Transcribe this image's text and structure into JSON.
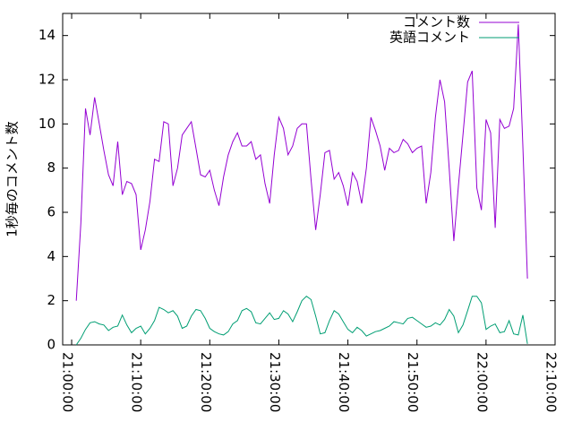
{
  "chart_data": {
    "type": "line",
    "ylabel": "1秒毎のコメント数",
    "x": [
      "21:00:40",
      "21:01:20",
      "21:02:00",
      "21:02:40",
      "21:03:20",
      "21:04:00",
      "21:04:40",
      "21:05:20",
      "21:06:00",
      "21:06:40",
      "21:07:20",
      "21:08:00",
      "21:08:40",
      "21:09:20",
      "21:10:00",
      "21:10:40",
      "21:11:20",
      "21:12:00",
      "21:12:40",
      "21:13:20",
      "21:14:00",
      "21:14:40",
      "21:15:20",
      "21:16:00",
      "21:16:40",
      "21:17:20",
      "21:18:00",
      "21:18:40",
      "21:19:20",
      "21:20:00",
      "21:20:40",
      "21:21:20",
      "21:22:00",
      "21:22:40",
      "21:23:20",
      "21:24:00",
      "21:24:40",
      "21:25:20",
      "21:26:00",
      "21:26:40",
      "21:27:20",
      "21:28:00",
      "21:28:40",
      "21:29:20",
      "21:30:00",
      "21:30:40",
      "21:31:20",
      "21:32:00",
      "21:32:40",
      "21:33:20",
      "21:34:00",
      "21:34:40",
      "21:35:20",
      "21:36:00",
      "21:36:40",
      "21:37:20",
      "21:38:00",
      "21:38:40",
      "21:39:20",
      "21:40:00",
      "21:40:40",
      "21:41:20",
      "21:42:00",
      "21:42:40",
      "21:43:20",
      "21:44:00",
      "21:44:40",
      "21:45:20",
      "21:46:00",
      "21:46:40",
      "21:47:20",
      "21:48:00",
      "21:48:40",
      "21:49:20",
      "21:50:00",
      "21:50:40",
      "21:51:20",
      "21:52:00",
      "21:52:40",
      "21:53:20",
      "21:54:00",
      "21:54:40",
      "21:55:20",
      "21:56:00",
      "21:56:40",
      "21:57:20",
      "21:58:00",
      "21:58:40",
      "21:59:20",
      "22:00:00",
      "22:00:40",
      "22:01:20",
      "22:02:00",
      "22:02:40",
      "22:03:20",
      "22:04:00",
      "22:04:40",
      "22:05:20",
      "22:06:00"
    ],
    "series": [
      {
        "name": "コメント数",
        "color": "#9400d3",
        "values": [
          2.0,
          5.5,
          10.7,
          9.5,
          11.2,
          10.0,
          8.8,
          7.7,
          7.2,
          9.2,
          6.8,
          7.4,
          7.3,
          6.8,
          4.3,
          5.2,
          6.5,
          8.4,
          8.3,
          10.1,
          10.0,
          7.2,
          8.0,
          9.5,
          9.8,
          10.1,
          8.9,
          7.7,
          7.6,
          7.9,
          7.0,
          6.3,
          7.6,
          8.6,
          9.2,
          9.6,
          9.0,
          9.0,
          9.2,
          8.4,
          8.6,
          7.3,
          6.4,
          8.6,
          10.3,
          9.8,
          8.6,
          9.0,
          9.8,
          10.0,
          10.0,
          7.5,
          5.2,
          6.8,
          8.7,
          8.8,
          7.5,
          7.8,
          7.2,
          6.3,
          7.8,
          7.4,
          6.4,
          8.0,
          10.3,
          9.7,
          9.0,
          7.9,
          8.9,
          8.7,
          8.8,
          9.3,
          9.1,
          8.7,
          8.9,
          9.0,
          6.4,
          7.8,
          10.3,
          12.0,
          11.0,
          8.0,
          4.7,
          7.2,
          9.5,
          11.9,
          12.4,
          7.1,
          6.1,
          10.2,
          9.6,
          5.3,
          10.2,
          9.8,
          9.9,
          10.7,
          14.5,
          9.0,
          3.0
        ]
      },
      {
        "name": "英語コメント",
        "color": "#009e73",
        "values": [
          0,
          0.3,
          0.7,
          1.0,
          1.05,
          0.95,
          0.9,
          0.65,
          0.8,
          0.85,
          1.35,
          0.9,
          0.55,
          0.75,
          0.85,
          0.5,
          0.75,
          1.1,
          1.7,
          1.6,
          1.45,
          1.55,
          1.3,
          0.75,
          0.85,
          1.3,
          1.6,
          1.55,
          1.2,
          0.75,
          0.6,
          0.5,
          0.45,
          0.6,
          0.95,
          1.1,
          1.55,
          1.65,
          1.5,
          1.0,
          0.95,
          1.2,
          1.45,
          1.15,
          1.2,
          1.55,
          1.4,
          1.05,
          1.5,
          2.0,
          2.2,
          2.05,
          1.3,
          0.5,
          0.55,
          1.1,
          1.55,
          1.4,
          1.05,
          0.7,
          0.55,
          0.8,
          0.65,
          0.4,
          0.5,
          0.6,
          0.65,
          0.75,
          0.85,
          1.05,
          1.0,
          0.95,
          1.2,
          1.25,
          1.1,
          0.95,
          0.8,
          0.85,
          1.0,
          0.9,
          1.15,
          1.6,
          1.3,
          0.55,
          0.9,
          1.55,
          2.2,
          2.2,
          1.9,
          0.7,
          0.85,
          0.95,
          0.55,
          0.6,
          1.1,
          0.5,
          0.45,
          1.35,
          0.05
        ]
      }
    ],
    "xlim": [
      "20:58:42",
      "22:10:00"
    ],
    "xticks": [
      "21:00:00",
      "21:10:00",
      "21:20:00",
      "21:30:00",
      "21:40:00",
      "21:50:00",
      "22:00:00",
      "22:10:00"
    ],
    "ylim": [
      0,
      15
    ],
    "yticks": [
      0,
      2,
      4,
      6,
      8,
      10,
      12,
      14
    ],
    "legend": "upper right"
  }
}
